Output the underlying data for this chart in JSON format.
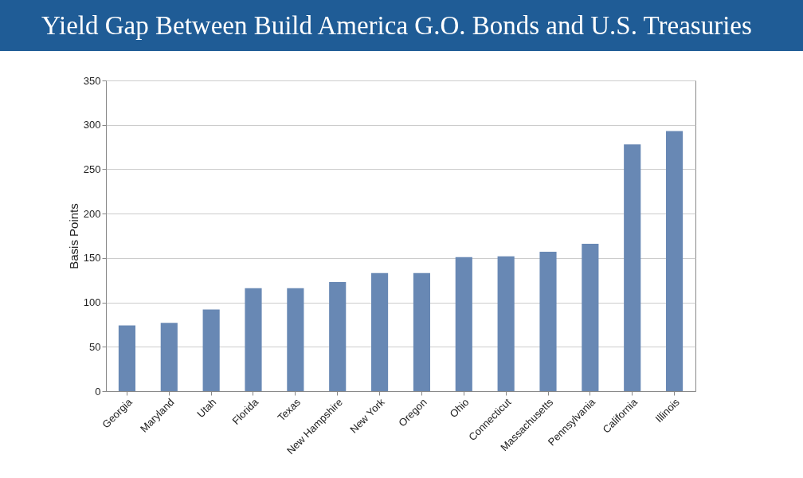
{
  "chart_data": {
    "type": "bar",
    "title": "Yield Gap Between Build America G.O. Bonds and U.S. Treasuries",
    "ylabel": "Basis Points",
    "categories": [
      "Georgia",
      "Maryland",
      "Utah",
      "Florida",
      "Texas",
      "New Hampshire",
      "New York",
      "Oregon",
      "Ohio",
      "Connecticut",
      "Massachusetts",
      "Pennsylvania",
      "California",
      "Illinois"
    ],
    "values": [
      74,
      77,
      92,
      116,
      116,
      123,
      133,
      133,
      151,
      152,
      157,
      166,
      278,
      293
    ],
    "color": "#6888b4",
    "ylim": [
      0,
      350
    ],
    "yticks": [
      0,
      50,
      100,
      150,
      200,
      250,
      300,
      350
    ],
    "grid": "y"
  }
}
